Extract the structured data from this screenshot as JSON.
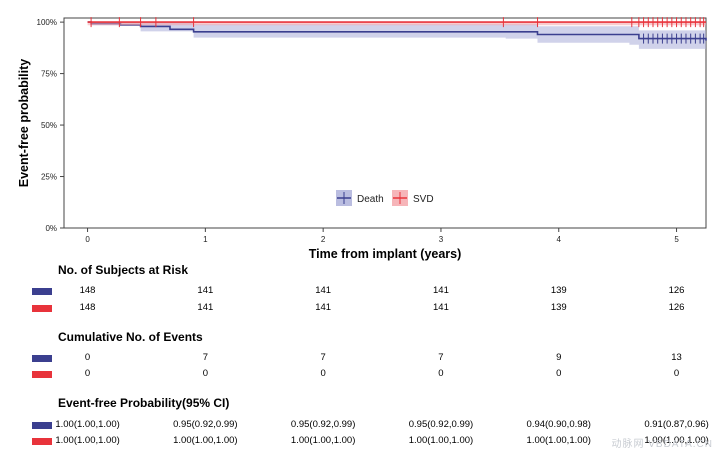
{
  "colors": {
    "death": "#3b3f8f",
    "svd": "#e8333b",
    "death_band": "#a9add8",
    "svd_band": "#f4a3a8"
  },
  "chart_data": {
    "type": "line",
    "ylabel": "Event-free probability",
    "xlabel": "Time from implant (years)",
    "xlim": [
      -0.2,
      5.25
    ],
    "ylim": [
      0,
      1.02
    ],
    "x_ticks": [
      0,
      1,
      2,
      3,
      4,
      5
    ],
    "y_ticks": [
      0,
      0.25,
      0.5,
      0.75,
      1.0
    ],
    "y_tick_labels": [
      "0%",
      "25%",
      "50%",
      "75%",
      "100%"
    ],
    "legend": {
      "placement": "bottom-center",
      "entries": [
        "Death",
        "SVD"
      ]
    },
    "series": [
      {
        "name": "Death",
        "color_key": "death",
        "steps": [
          [
            0,
            1.0
          ],
          [
            0.03,
            0.993
          ],
          [
            0.28,
            0.986
          ],
          [
            0.45,
            0.979
          ],
          [
            0.7,
            0.965
          ],
          [
            0.9,
            0.953
          ],
          [
            3.55,
            0.953
          ],
          [
            3.82,
            0.94
          ],
          [
            4.6,
            0.94
          ],
          [
            4.68,
            0.92
          ],
          [
            5.25,
            0.91
          ]
        ],
        "ci_lower": [
          [
            0,
            1.0
          ],
          [
            0.03,
            0.985
          ],
          [
            0.45,
            0.955
          ],
          [
            0.9,
            0.925
          ],
          [
            3.55,
            0.92
          ],
          [
            3.82,
            0.9
          ],
          [
            4.6,
            0.89
          ],
          [
            4.68,
            0.87
          ],
          [
            5.25,
            0.86
          ]
        ],
        "ci_upper": [
          [
            0,
            1.0
          ],
          [
            0.03,
            1.0
          ],
          [
            0.9,
            0.99
          ],
          [
            3.82,
            0.98
          ],
          [
            4.68,
            0.96
          ],
          [
            5.25,
            0.96
          ]
        ],
        "censor_x": [
          4.72,
          4.76,
          4.8,
          4.84,
          4.88,
          4.92,
          4.96,
          5.0,
          5.04,
          5.08,
          5.12,
          5.16,
          5.2,
          5.23
        ]
      },
      {
        "name": "SVD",
        "color_key": "svd",
        "steps": [
          [
            0,
            1.0
          ],
          [
            5.25,
            1.0
          ]
        ],
        "ci_lower": [
          [
            0,
            0.985
          ],
          [
            5.25,
            0.985
          ]
        ],
        "ci_upper": [
          [
            0,
            1.0
          ],
          [
            5.25,
            1.0
          ]
        ],
        "censor_x": [
          0.03,
          0.27,
          0.45,
          0.58,
          0.9,
          3.53,
          3.82,
          4.62,
          4.68,
          4.72,
          4.76,
          4.8,
          4.84,
          4.88,
          4.92,
          4.96,
          5.0,
          5.04,
          5.08,
          5.12,
          5.16,
          5.2,
          5.23
        ]
      }
    ]
  },
  "tables": [
    {
      "title": "No. of Subjects at Risk",
      "rows": [
        {
          "color_key": "death",
          "cells": [
            "148",
            "141",
            "141",
            "141",
            "139",
            "126"
          ]
        },
        {
          "color_key": "svd",
          "cells": [
            "148",
            "141",
            "141",
            "141",
            "139",
            "126"
          ]
        }
      ]
    },
    {
      "title": "Cumulative No. of Events",
      "rows": [
        {
          "color_key": "death",
          "cells": [
            "0",
            "7",
            "7",
            "7",
            "9",
            "13"
          ]
        },
        {
          "color_key": "svd",
          "cells": [
            "0",
            "0",
            "0",
            "0",
            "0",
            "0"
          ]
        }
      ]
    },
    {
      "title": "Event-free Probability(95% CI)",
      "rows": [
        {
          "color_key": "death",
          "cells": [
            "1.00(1.00,1.00)",
            "0.95(0.92,0.99)",
            "0.95(0.92,0.99)",
            "0.95(0.92,0.99)",
            "0.94(0.90,0.98)",
            "0.91(0.87,0.96)"
          ]
        },
        {
          "color_key": "svd",
          "cells": [
            "1.00(1.00,1.00)",
            "1.00(1.00,1.00)",
            "1.00(1.00,1.00)",
            "1.00(1.00,1.00)",
            "1.00(1.00,1.00)",
            "1.00(1.00,1.00)"
          ]
        }
      ]
    }
  ],
  "watermark": "动脉网 VBDATA.CN"
}
